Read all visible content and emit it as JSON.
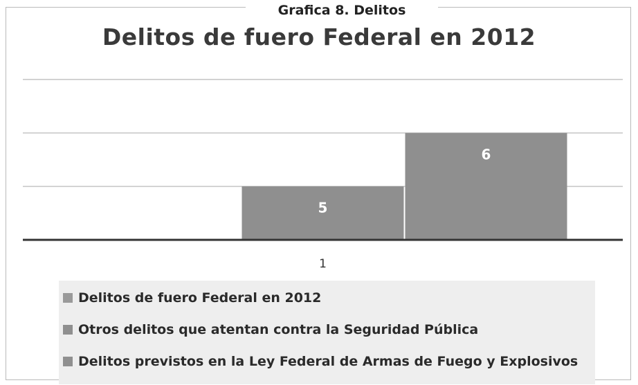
{
  "caption": "Grafica 8. Delitos",
  "chart_data": {
    "type": "bar",
    "title": "Delitos de fuero Federal en 2012",
    "categories": [
      "1"
    ],
    "ylim": [
      4,
      7
    ],
    "grid": true,
    "legend_position": "bottom",
    "series": [
      {
        "name": "Delitos de fuero Federal en 2012",
        "values": [
          null
        ],
        "color": "#9a9a9a"
      },
      {
        "name": "Otros delitos que atentan contra la Seguridad Pública",
        "values": [
          5
        ],
        "color": "#8f8f8f"
      },
      {
        "name": "Delitos previstos en la Ley Federal de Armas de Fuego y Explosivos",
        "values": [
          6
        ],
        "color": "#8f8f8f"
      }
    ]
  }
}
